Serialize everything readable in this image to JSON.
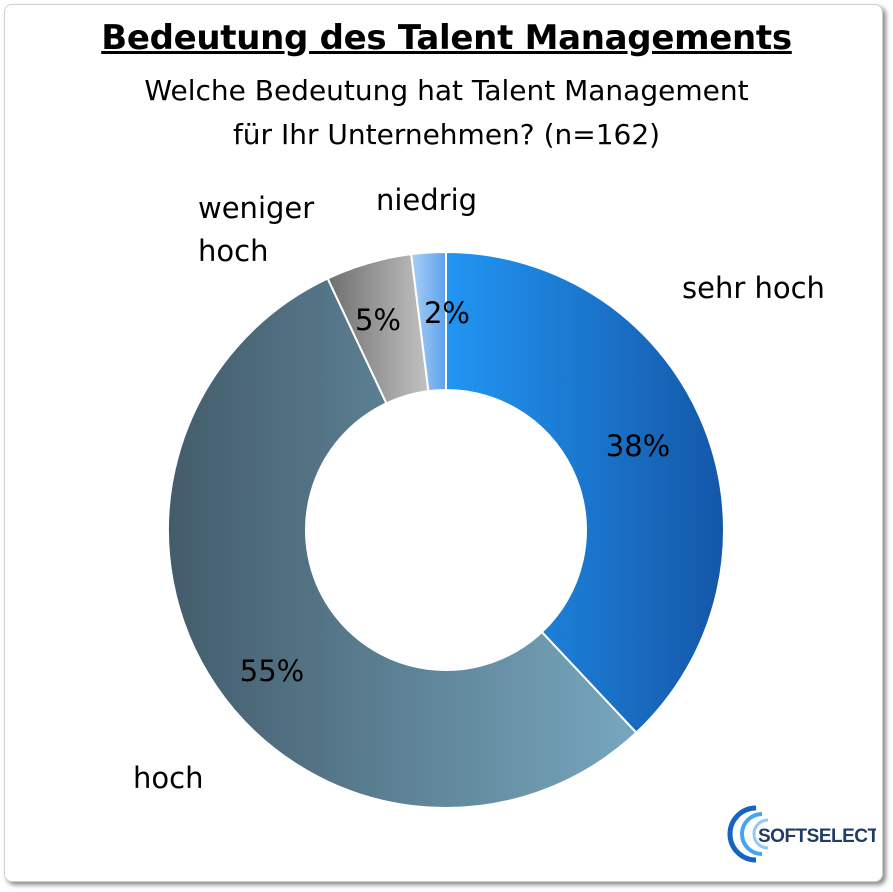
{
  "title": "Bedeutung des Talent Managements",
  "subtitle_line1": "Welche Bedeutung hat Talent Management",
  "subtitle_line2": "für Ihr Unternehmen? (n=162)",
  "chart_data": {
    "type": "pie",
    "subtype": "donut",
    "categories": [
      "sehr hoch",
      "hoch",
      "weniger hoch",
      "niedrig"
    ],
    "values": [
      38,
      55,
      5,
      2
    ],
    "labels": [
      "38%",
      "55%",
      "5%",
      "2%"
    ],
    "colors": [
      "#1e88e5",
      "#5d8397",
      "#9a9a9a",
      "#8cbcf2"
    ],
    "title": "Bedeutung des Talent Managements"
  },
  "logo": {
    "text": "SOFTSELECT",
    "colors": [
      "#1565c0",
      "#42a5f5",
      "#90caf9"
    ]
  }
}
